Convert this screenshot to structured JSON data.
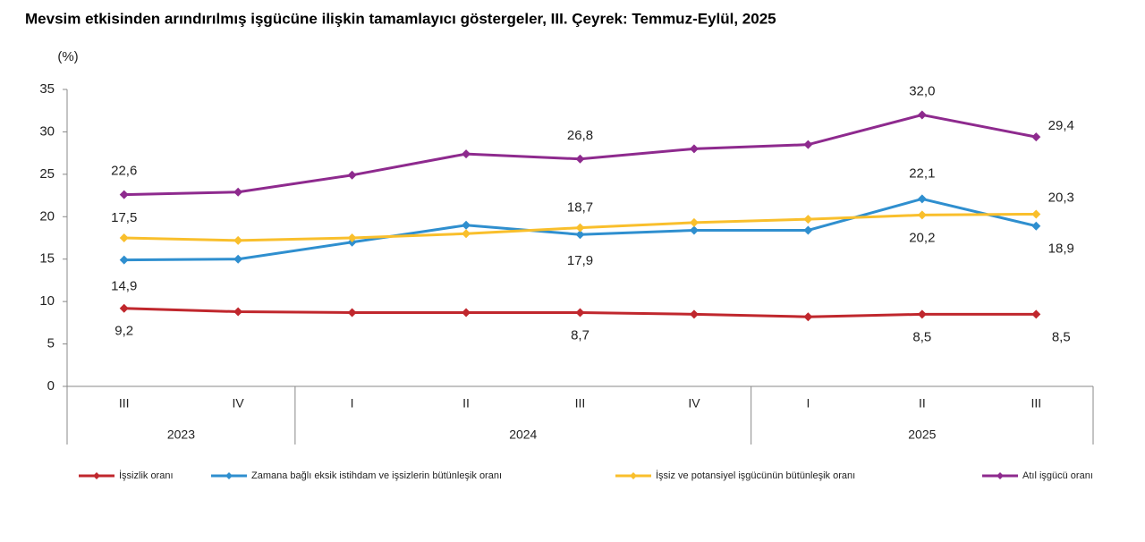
{
  "chart_data": {
    "type": "line",
    "title": "Mevsim etkisinden arındırılmış işgücüne ilişkin tamamlayıcı göstergeler, III. Çeyrek: Temmuz-Eylül, 2025",
    "y_label": "(%)",
    "categories": [
      "III",
      "IV",
      "I",
      "II",
      "III",
      "IV",
      "I",
      "II",
      "III"
    ],
    "year_groups": [
      {
        "label": "2023",
        "count": 2
      },
      {
        "label": "2024",
        "count": 4
      },
      {
        "label": "2025",
        "count": 3
      }
    ],
    "ylim": [
      0,
      35
    ],
    "yticks": [
      0,
      5,
      10,
      15,
      20,
      25,
      30,
      35
    ],
    "series": [
      {
        "name": "İşsizlik oranı",
        "color": "#c0272d",
        "values": [
          9.2,
          8.8,
          8.7,
          8.7,
          8.7,
          8.5,
          8.2,
          8.5,
          8.5
        ],
        "value_labels": [
          "9,2",
          null,
          null,
          null,
          "8,7",
          null,
          null,
          "8,5",
          "8,5"
        ]
      },
      {
        "name": "Zamana bağlı eksik istihdam ve işsizlerin bütünleşik oranı",
        "color": "#2f8fcf",
        "values": [
          14.9,
          15.0,
          17.0,
          19.0,
          17.9,
          18.4,
          18.4,
          22.1,
          18.9
        ],
        "value_labels": [
          "14,9",
          null,
          null,
          null,
          "17,9",
          null,
          null,
          "22,1",
          "18,9"
        ]
      },
      {
        "name": "İşsiz ve potansiyel işgücünün bütünleşik oranı",
        "color": "#f9bf2c",
        "values": [
          17.5,
          17.2,
          17.5,
          18.0,
          18.7,
          19.3,
          19.7,
          20.2,
          20.3
        ],
        "value_labels": [
          "17,5",
          null,
          null,
          null,
          "18,7",
          null,
          null,
          "20,2",
          "20,3"
        ]
      },
      {
        "name": "Atıl işgücü oranı",
        "color": "#8e2a8e",
        "values": [
          22.6,
          22.9,
          24.9,
          27.4,
          26.8,
          28.0,
          28.5,
          32.0,
          29.4
        ],
        "value_labels": [
          "22,6",
          null,
          null,
          null,
          "26,8",
          null,
          null,
          "32,0",
          "29,4"
        ]
      }
    ]
  }
}
